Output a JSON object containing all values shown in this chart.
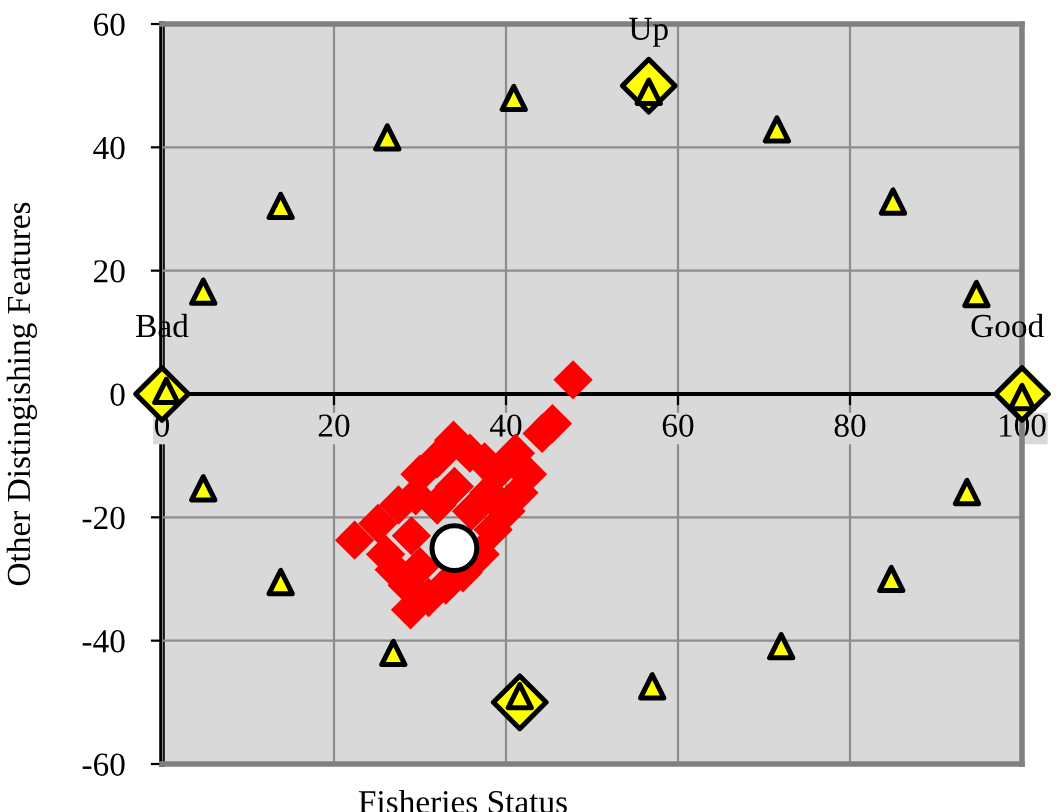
{
  "chart_data": {
    "type": "scatter",
    "xlabel": "Fisheries Status",
    "ylabel": "Other Distingishing Features",
    "xlim": [
      0,
      100
    ],
    "ylim": [
      -60,
      60
    ],
    "xticks": [
      0,
      20,
      40,
      60,
      80,
      100
    ],
    "yticks": [
      -60,
      -40,
      -20,
      0,
      20,
      40,
      60
    ],
    "grid": true,
    "series": [
      {
        "color": "#ffff00",
        "marker": "triangle",
        "x": [
          0.5,
          4.8,
          13.8,
          26.2,
          40.9,
          56.6,
          71.5,
          85,
          94.7,
          100,
          93.6,
          84.8,
          72,
          57,
          41.6,
          26.9,
          13.8,
          4.8
        ],
        "values": [
          0.5,
          16.6,
          30.5,
          41.6,
          48,
          49,
          42.9,
          31.2,
          16.2,
          -0.5,
          -15.9,
          -30,
          -40.9,
          -47.4,
          -49,
          -42,
          -30.5,
          -15.3
        ]
      },
      {
        "color": "#ffff00",
        "marker": "diamond",
        "x": [
          0,
          56.6,
          100,
          41.6
        ],
        "values": [
          0,
          50,
          0,
          -50
        ]
      },
      {
        "color": "#ff0000",
        "marker": "diamond",
        "x": [
          47.8,
          45.4,
          44.2,
          41.1,
          39.5,
          37.5,
          35.8,
          33.9,
          32,
          30,
          29.5,
          27.5,
          25.1,
          22.4,
          26,
          27,
          28.5,
          28.9,
          31,
          33,
          35,
          37,
          38.5,
          40,
          41.5,
          42.5,
          36,
          29,
          34,
          32,
          38,
          30
        ],
        "values": [
          2.3,
          -4.8,
          -6.4,
          -9.6,
          -12,
          -11,
          -9.6,
          -7.5,
          -10.5,
          -13,
          -16.5,
          -18,
          -21,
          -23.7,
          -26,
          -28.5,
          -31,
          -35,
          -33,
          -31,
          -29,
          -26,
          -22,
          -19,
          -16,
          -13,
          -19,
          -23,
          -15,
          -18,
          -16,
          -28
        ]
      },
      {
        "color": "#ffffff",
        "marker": "circle",
        "x": [
          34
        ],
        "values": [
          -25
        ]
      }
    ],
    "annotations": [
      {
        "text": "Bad",
        "x": 0,
        "y": 0
      },
      {
        "text": "Up",
        "x": 56.6,
        "y": 50
      },
      {
        "text": "Good",
        "x": 100,
        "y": 0
      }
    ]
  }
}
